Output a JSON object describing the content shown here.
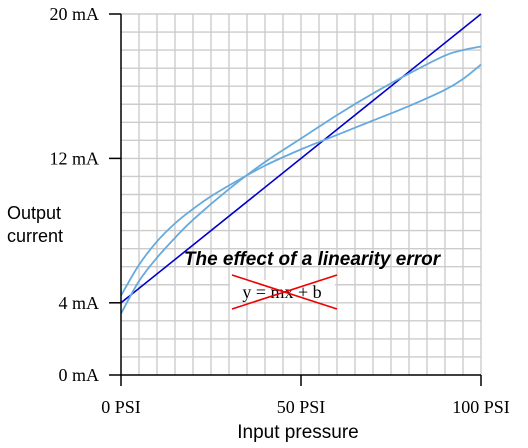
{
  "chart_data": {
    "type": "line",
    "title": "",
    "xlabel": "Input pressure",
    "ylabel_lines": [
      "Output",
      "current"
    ],
    "xlim": [
      0,
      100
    ],
    "ylim": [
      0,
      20
    ],
    "x_ticks": [
      {
        "value": 0,
        "label": "0 PSI"
      },
      {
        "value": 50,
        "label": "50 PSI"
      },
      {
        "value": 100,
        "label": "100 PSI"
      }
    ],
    "y_ticks": [
      {
        "value": 0,
        "label": "0 mA"
      },
      {
        "value": 4,
        "label": "4 mA"
      },
      {
        "value": 12,
        "label": "12 mA"
      },
      {
        "value": 20,
        "label": "20 mA"
      }
    ],
    "grid": true,
    "grid_step_x": 5,
    "grid_step_y": 1,
    "series": [
      {
        "color": "#0000cc",
        "x": [
          0,
          100
        ],
        "y": [
          4,
          20
        ]
      },
      {
        "color": "#66aadd",
        "x": [
          0,
          5,
          10,
          15,
          20,
          25,
          30,
          40,
          50,
          60,
          70,
          80,
          90,
          95,
          100
        ],
        "y": [
          4.4,
          6.1,
          7.4,
          8.4,
          9.2,
          9.9,
          10.5,
          11.6,
          12.5,
          13.3,
          14.1,
          14.9,
          15.8,
          16.4,
          17.2
        ]
      },
      {
        "color": "#66aadd",
        "x": [
          0,
          5,
          10,
          15,
          20,
          30,
          40,
          50,
          60,
          70,
          80,
          90,
          95,
          100
        ],
        "y": [
          3.4,
          5.2,
          6.5,
          7.6,
          8.6,
          10.3,
          11.8,
          13.1,
          14.4,
          15.6,
          16.7,
          17.7,
          18.0,
          18.2
        ]
      }
    ],
    "annotations": {
      "headline": "The effect of a linearity error",
      "equation": "y = mx + b"
    },
    "colors": {
      "grid": "#cccccc",
      "axis": "#000000",
      "strike": "#ee0000"
    }
  }
}
